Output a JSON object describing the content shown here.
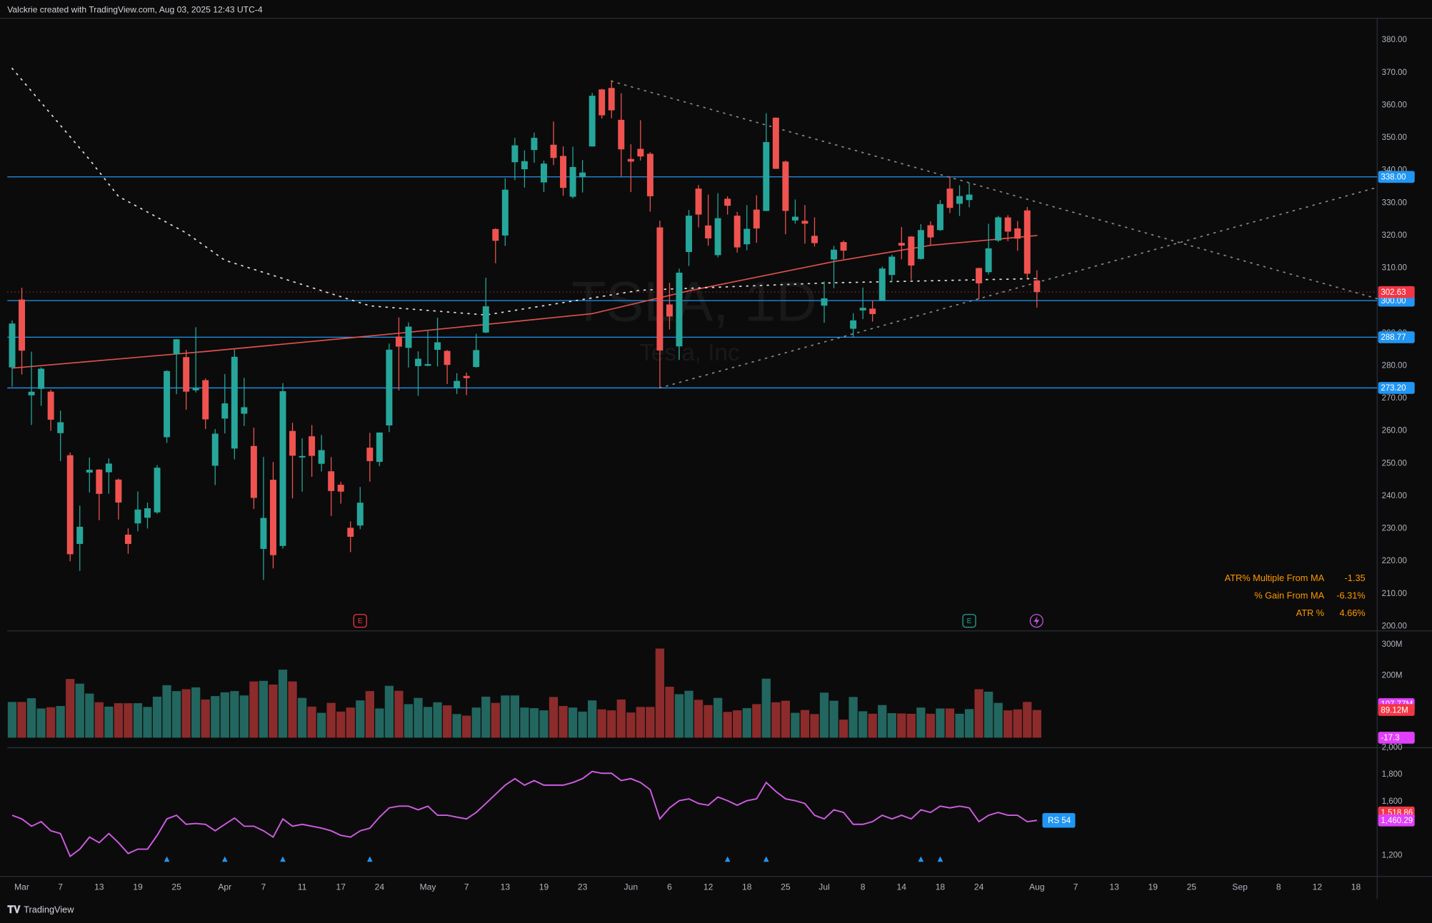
{
  "header": "Valckrie created with TradingView.com, Aug 03, 2025 12:43 UTC-4",
  "footer": "TradingView",
  "chart_data": [
    {
      "type": "candlestick",
      "watermark_symbol": "TSLA, 1D",
      "watermark_name": "Tesla, Inc",
      "up_color": "#26a69a",
      "down_color": "#ef5350",
      "open": [
        279.5,
        300.34,
        270.93,
        272.92,
        272.06,
        259.32,
        252.54,
        225.31,
        247.22,
        248.13,
        247.31,
        245.06,
        228.16,
        231.61,
        233.35,
        234.99,
        258.08,
        283.6,
        282.66,
        272.48,
        275.58,
        249.31,
        263.8,
        254.6,
        265.29,
        255.38,
        223.78,
        245.0,
        224.69,
        260.0,
        251.84,
        258.36,
        249.91,
        247.61,
        243.47,
        230.26,
        230.96,
        254.86,
        250.5,
        261.69,
        288.98,
        285.5,
        279.9,
        280.01,
        284.9,
        284.57,
        273.11,
        276.88,
        279.63,
        290.21,
        321.99,
        320.0,
        342.5,
        340.34,
        346.24,
        336.3,
        347.87,
        344.43,
        331.9,
        337.92,
        347.35,
        364.84,
        365.29,
        355.52,
        343.5,
        346.6,
        345.1,
        322.49,
        298.83,
        285.96,
        314.94,
        334.4,
        323.08,
        313.97,
        331.29,
        326.09,
        317.31,
        327.95,
        327.54,
        356.17,
        342.7,
        324.61,
        324.51,
        319.9,
        298.46,
        312.63,
        317.99,
        291.37,
        297.0,
        297.55,
        300.05,
        307.89,
        317.73,
        319.68,
        312.8,
        323.15,
        321.66,
        334.4,
        329.74,
        330.9,
        310.0,
        308.74,
        318.45,
        325.55,
        322.18,
        327.7,
        306.21
      ],
      "high": [
        293.9,
        303.94,
        284.35,
        279.55,
        272.65,
        266.25,
        253.37,
        237.06,
        251.84,
        248.29,
        251.58,
        245.4,
        230.1,
        241.41,
        238.0,
        249.52,
        278.64,
        288.2,
        284.9,
        291.85,
        276.1,
        260.56,
        277.45,
        284.99,
        276.3,
        261.0,
        252.0,
        250.44,
        274.69,
        262.49,
        257.74,
        261.8,
        258.75,
        251.97,
        244.34,
        232.21,
        242.79,
        259.45,
        259.54,
        286.85,
        294.86,
        293.32,
        284.45,
        290.87,
        294.78,
        284.85,
        277.73,
        277.92,
        289.8,
        307.04,
        322.21,
        337.59,
        350.0,
        346.14,
        351.62,
        343.0,
        354.99,
        347.35,
        347.27,
        343.18,
        363.79,
        365.0,
        367.71,
        363.68,
        348.02,
        355.4,
        345.6,
        324.55,
        305.5,
        309.83,
        327.83,
        335.5,
        332.56,
        332.99,
        332.05,
        327.26,
        329.32,
        332.36,
        357.54,
        356.26,
        343.0,
        331.05,
        329.34,
        325.58,
        305.89,
        316.83,
        318.45,
        296.15,
        304.05,
        300.15,
        310.48,
        314.09,
        322.6,
        319.8,
        323.5,
        324.34,
        330.9,
        338.0,
        335.41,
        336.2,
        310.15,
        323.63,
        326.0,
        326.25,
        324.45,
        328.76,
        309.31
      ],
      "low": [
        273.6,
        277.3,
        261.84,
        267.71,
        260.02,
        250.73,
        220.0,
        217.02,
        241.1,
        232.6,
        240.73,
        232.8,
        222.28,
        229.2,
        230.05,
        234.55,
        256.33,
        271.28,
        266.51,
        271.82,
        260.57,
        243.36,
        259.25,
        251.27,
        261.51,
        236.0,
        214.25,
        217.8,
        223.88,
        239.33,
        241.36,
        245.93,
        247.54,
        233.89,
        237.68,
        222.79,
        229.85,
        244.43,
        249.2,
        259.63,
        272.42,
        279.47,
        270.78,
        279.81,
        279.81,
        274.4,
        271.35,
        271.0,
        279.41,
        290.0,
        311.5,
        316.8,
        337.0,
        334.72,
        342.33,
        333.37,
        341.63,
        332.2,
        331.39,
        333.21,
        347.32,
        355.91,
        356.0,
        338.14,
        333.33,
        343.04,
        327.33,
        273.21,
        291.14,
        281.85,
        310.67,
        322.5,
        316.86,
        313.3,
        326.41,
        314.74,
        315.45,
        317.78,
        327.48,
        340.44,
        320.4,
        323.61,
        317.5,
        316.6,
        293.21,
        303.82,
        312.76,
        288.77,
        294.35,
        293.55,
        300.0,
        305.65,
        312.67,
        306.35,
        312.62,
        317.06,
        321.42,
        326.88,
        326.0,
        328.67,
        300.41,
        308.01,
        318.02,
        318.25,
        315.33,
        307.0,
        297.82
      ],
      "close": [
        292.98,
        284.65,
        272.04,
        279.1,
        263.45,
        262.67,
        222.15,
        230.58,
        248.09,
        240.68,
        249.98,
        238.01,
        225.31,
        235.86,
        236.26,
        248.71,
        278.39,
        288.14,
        272.06,
        273.13,
        263.55,
        259.16,
        268.46,
        282.76,
        267.28,
        239.43,
        233.29,
        221.86,
        272.2,
        252.4,
        252.31,
        252.35,
        254.11,
        241.55,
        241.37,
        227.5,
        237.97,
        250.74,
        259.51,
        284.95,
        285.88,
        292.03,
        282.16,
        280.52,
        287.21,
        280.26,
        275.35,
        276.22,
        284.82,
        298.26,
        318.38,
        334.07,
        347.68,
        342.82,
        349.98,
        342.09,
        343.82,
        334.62,
        341.04,
        339.34,
        362.89,
        356.9,
        358.43,
        346.46,
        342.69,
        344.27,
        332.05,
        284.7,
        295.14,
        308.58,
        326.09,
        326.43,
        319.11,
        325.31,
        329.13,
        316.35,
        322.05,
        322.16,
        348.68,
        340.47,
        327.55,
        325.78,
        323.63,
        317.66,
        300.71,
        315.65,
        315.35,
        293.94,
        297.81,
        295.88,
        309.87,
        313.51,
        316.9,
        310.78,
        321.67,
        319.41,
        329.65,
        328.49,
        332.11,
        332.56,
        305.3,
        316.06,
        325.59,
        321.2,
        319.04,
        308.27,
        302.63
      ],
      "xlim": [
        -0.5,
        141.2
      ],
      "xticks": [
        {
          "value": 1,
          "label": "Mar"
        },
        {
          "value": 5,
          "label": "7"
        },
        {
          "value": 9,
          "label": "13"
        },
        {
          "value": 13,
          "label": "19"
        },
        {
          "value": 17,
          "label": "25"
        },
        {
          "value": 22,
          "label": "Apr"
        },
        {
          "value": 26,
          "label": "7"
        },
        {
          "value": 30,
          "label": "11"
        },
        {
          "value": 34,
          "label": "17"
        },
        {
          "value": 38,
          "label": "24"
        },
        {
          "value": 43,
          "label": "May"
        },
        {
          "value": 47,
          "label": "7"
        },
        {
          "value": 51,
          "label": "13"
        },
        {
          "value": 55,
          "label": "19"
        },
        {
          "value": 59,
          "label": "23"
        },
        {
          "value": 64,
          "label": "Jun"
        },
        {
          "value": 68,
          "label": "6"
        },
        {
          "value": 72,
          "label": "12"
        },
        {
          "value": 76,
          "label": "18"
        },
        {
          "value": 80,
          "label": "25"
        },
        {
          "value": 84,
          "label": "Jul"
        },
        {
          "value": 88,
          "label": "8"
        },
        {
          "value": 92,
          "label": "14"
        },
        {
          "value": 96,
          "label": "18"
        },
        {
          "value": 100,
          "label": "24"
        },
        {
          "value": 106,
          "label": "Aug"
        },
        {
          "value": 110,
          "label": "7"
        },
        {
          "value": 114,
          "label": "13"
        },
        {
          "value": 118,
          "label": "19"
        },
        {
          "value": 122,
          "label": "25"
        },
        {
          "value": 127,
          "label": "Sep"
        },
        {
          "value": 131,
          "label": "8"
        },
        {
          "value": 135,
          "label": "12"
        },
        {
          "value": 139,
          "label": "18"
        }
      ],
      "ylim": [
        198.9,
        386.7
      ],
      "yticks": [
        {
          "value": 200,
          "label": "200.00"
        },
        {
          "value": 210,
          "label": "210.00"
        },
        {
          "value": 220,
          "label": "220.00"
        },
        {
          "value": 230,
          "label": "230.00"
        },
        {
          "value": 240,
          "label": "240.00"
        },
        {
          "value": 250,
          "label": "250.00"
        },
        {
          "value": 260,
          "label": "260.00"
        },
        {
          "value": 270,
          "label": "270.00"
        },
        {
          "value": 280,
          "label": "280.00"
        },
        {
          "value": 290,
          "label": "290.00"
        },
        {
          "value": 310,
          "label": "310.00"
        },
        {
          "value": 320,
          "label": "320.00"
        },
        {
          "value": 330,
          "label": "330.00"
        },
        {
          "value": 340,
          "label": "340.00"
        },
        {
          "value": 350,
          "label": "350.00"
        },
        {
          "value": 360,
          "label": "360.00"
        },
        {
          "value": 370,
          "label": "370.00"
        },
        {
          "value": 380,
          "label": "380.00"
        }
      ],
      "levels": [
        {
          "value": 338.0,
          "label": "338.00",
          "color": "#2196f3"
        },
        {
          "value": 300.0,
          "label": "300.00",
          "color": "#2196f3"
        },
        {
          "value": 288.77,
          "label": "288.77",
          "color": "#2196f3"
        },
        {
          "value": 273.2,
          "label": "273.20",
          "color": "#2196f3"
        }
      ],
      "last_price": {
        "value": 302.63,
        "label": "302.63",
        "color": "#f23645"
      },
      "lines": [
        {
          "color": "#e0514c",
          "dashed": false,
          "x": [
            0,
            20,
            40,
            60,
            70,
            85,
            95,
            106
          ],
          "values": [
            279.3,
            284.4,
            290.0,
            296.0,
            303.0,
            312.0,
            317.0,
            320.0
          ]
        },
        {
          "color": "#ffffff",
          "dashed": true,
          "x": [
            0,
            8,
            11,
            18,
            22,
            37,
            49,
            65,
            84,
            106
          ],
          "values": [
            371.3,
            343.3,
            332.0,
            320.8,
            312.4,
            298.4,
            295.6,
            303.2,
            305.4,
            306.8
          ]
        },
        {
          "color": "#9a9a9a",
          "dashed": true,
          "x": [
            62,
            141.2
          ],
          "values": [
            367.4,
            300.6
          ]
        },
        {
          "color": "#9a9a9a",
          "dashed": true,
          "x": [
            67,
            141.2
          ],
          "values": [
            273.2,
            334.8
          ]
        }
      ],
      "events": [
        {
          "x": 36,
          "label": "E",
          "color": "#f23645"
        },
        {
          "x": 99,
          "label": "E",
          "color": "#26a69a"
        }
      ],
      "table": [
        [
          "ATR% Multiple From MA",
          "-1.35"
        ],
        [
          "% Gain From MA",
          "-6.31%"
        ],
        [
          "ATR %",
          "4.66%"
        ]
      ]
    },
    {
      "type": "bar",
      "values": [
        115,
        115,
        127,
        94,
        98,
        102,
        189,
        174,
        142,
        114,
        100,
        111,
        111,
        111,
        99,
        132,
        169,
        150,
        156,
        162,
        123,
        134,
        146,
        150,
        136,
        181,
        183,
        171,
        219,
        181,
        128,
        100,
        80,
        112,
        84,
        97,
        120,
        150,
        94,
        167,
        151,
        108,
        128,
        99,
        114,
        104,
        76,
        71,
        97,
        132,
        112,
        136,
        136,
        97,
        95,
        88,
        131,
        102,
        97,
        84,
        120,
        91,
        88,
        123,
        81,
        99,
        99,
        287,
        164,
        140,
        151,
        122,
        105,
        128,
        83,
        88,
        95,
        108,
        190,
        114,
        119,
        80,
        89,
        76,
        145,
        119,
        58,
        131,
        85,
        77,
        105,
        79,
        78,
        77,
        97,
        77,
        94,
        94,
        77,
        92,
        156,
        148,
        112,
        88,
        91,
        115,
        89.12
      ],
      "up_color": "#22665f",
      "down_color": "#8c2b2b",
      "ylim": [
        0,
        341
      ],
      "yticks": [
        {
          "value": 300,
          "label": "300M"
        },
        {
          "value": 200,
          "label": "200M"
        }
      ],
      "tags": [
        {
          "value": 107.77,
          "label": "107.77M",
          "color": "#e040fb"
        },
        {
          "value": 89.12,
          "label": "89.12M",
          "color": "#f23645"
        }
      ],
      "oscillator_tag": {
        "value": -17.3,
        "label": "-17.3",
        "color": "#e040fb"
      }
    },
    {
      "type": "line",
      "color": "#d05ce3",
      "values": [
        1498,
        1471,
        1417,
        1451,
        1383,
        1363,
        1193,
        1247,
        1336,
        1295,
        1363,
        1295,
        1214,
        1247,
        1247,
        1349,
        1471,
        1498,
        1431,
        1437,
        1431,
        1383,
        1431,
        1478,
        1417,
        1417,
        1383,
        1336,
        1471,
        1417,
        1431,
        1417,
        1403,
        1383,
        1349,
        1336,
        1383,
        1403,
        1485,
        1553,
        1566,
        1566,
        1539,
        1566,
        1498,
        1498,
        1485,
        1471,
        1519,
        1586,
        1654,
        1722,
        1770,
        1722,
        1756,
        1722,
        1722,
        1722,
        1742,
        1770,
        1824,
        1810,
        1810,
        1756,
        1770,
        1742,
        1688,
        1471,
        1553,
        1607,
        1620,
        1586,
        1573,
        1634,
        1607,
        1573,
        1607,
        1620,
        1742,
        1675,
        1620,
        1607,
        1586,
        1498,
        1471,
        1539,
        1519,
        1431,
        1431,
        1451,
        1498,
        1471,
        1498,
        1471,
        1539,
        1519,
        1566,
        1553,
        1566,
        1553,
        1451,
        1498,
        1519,
        1498,
        1498,
        1451,
        1460.29
      ],
      "ylim": [
        1044,
        2000
      ],
      "yticks": [
        {
          "value": 2000,
          "label": "2,000"
        },
        {
          "value": 1800,
          "label": "1,800"
        },
        {
          "value": 1600,
          "label": "1,600"
        },
        {
          "value": 1200,
          "label": "1,200"
        }
      ],
      "tags": [
        {
          "value": 1518.86,
          "label": "1,518.86",
          "color": "#f23645"
        },
        {
          "value": 1460.29,
          "label": "1,460.29",
          "color": "#e040fb"
        }
      ],
      "badge": "RS 54",
      "signals": [
        16,
        22,
        28,
        37,
        74,
        78,
        94,
        96
      ]
    }
  ]
}
